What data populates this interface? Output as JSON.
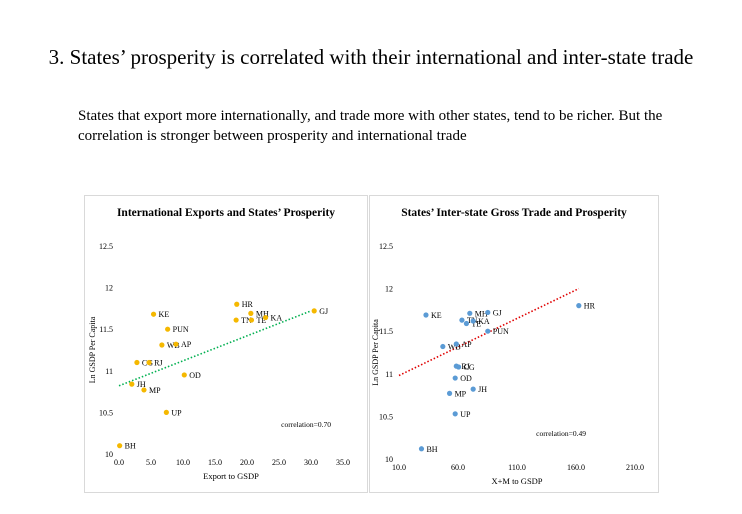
{
  "title": "3. States’ prosperity is correlated with their international and inter-state trade",
  "subtitle": "States that export more internationally, and trade more with other states, tend to be richer. But the correlation is stronger between prosperity and international trade",
  "colors": {
    "points_left": "#f5b800",
    "points_right": "#5b9bd5",
    "trend_left": "#00b050",
    "trend_right": "#e00000"
  },
  "chart_data": [
    {
      "type": "scatter",
      "title": "International Exports and States’ Prosperity",
      "xlabel": "Export to GSDP",
      "ylabel": "Ln GSDP Per Capita",
      "xlim": [
        0,
        35
      ],
      "ylim": [
        10,
        12.5
      ],
      "xticks": [
        "0.0",
        "5.0",
        "10.0",
        "15.0",
        "20.0",
        "25.0",
        "30.0",
        "35.0"
      ],
      "yticks": [
        "10",
        "10.5",
        "11",
        "11.5",
        "12",
        "12.5"
      ],
      "annotation": "correlation=0.70",
      "trendline": {
        "style": "dotted",
        "from": [
          0,
          10.82
        ],
        "to": [
          30,
          11.72
        ]
      },
      "points": [
        {
          "label": "BH",
          "x": 0.1,
          "y": 10.1
        },
        {
          "label": "JH",
          "x": 2.0,
          "y": 10.84
        },
        {
          "label": "MP",
          "x": 3.9,
          "y": 10.77
        },
        {
          "label": "UP",
          "x": 7.4,
          "y": 10.5
        },
        {
          "label": "CG",
          "x": 2.8,
          "y": 11.1
        },
        {
          "label": "RJ",
          "x": 4.7,
          "y": 11.1
        },
        {
          "label": "OD",
          "x": 10.2,
          "y": 10.95
        },
        {
          "label": "WB",
          "x": 6.7,
          "y": 11.31
        },
        {
          "label": "AP",
          "x": 8.9,
          "y": 11.32
        },
        {
          "label": "PUN",
          "x": 7.6,
          "y": 11.5
        },
        {
          "label": "KE",
          "x": 5.4,
          "y": 11.68
        },
        {
          "label": "HR",
          "x": 18.4,
          "y": 11.8
        },
        {
          "label": "TN",
          "x": 18.3,
          "y": 11.61
        },
        {
          "label": "MH",
          "x": 20.6,
          "y": 11.69
        },
        {
          "label": "TE",
          "x": 20.7,
          "y": 11.61
        },
        {
          "label": "KA",
          "x": 22.9,
          "y": 11.64
        },
        {
          "label": "GJ",
          "x": 30.5,
          "y": 11.72
        }
      ]
    },
    {
      "type": "scatter",
      "title": "States’ Inter-state Gross Trade and Prosperity",
      "xlabel": "X+M to GSDP",
      "ylabel": "Ln GSDP Per Capita",
      "xlim": [
        0,
        210
      ],
      "ylim": [
        10,
        12.5
      ],
      "xticks": [
        "10.0",
        "60.0",
        "110.0",
        "160.0",
        "210.0"
      ],
      "yticks": [
        "10",
        "10.5",
        "11",
        "11.5",
        "12",
        "12.5"
      ],
      "annotation": "correlation=0.49",
      "trendline": {
        "style": "dotted",
        "from": [
          0,
          10.98
        ],
        "to": [
          160,
          12.0
        ]
      },
      "points": [
        {
          "label": "BH",
          "x": 20,
          "y": 10.12
        },
        {
          "label": "UP",
          "x": 50,
          "y": 10.53
        },
        {
          "label": "MP",
          "x": 45,
          "y": 10.77
        },
        {
          "label": "JH",
          "x": 66,
          "y": 10.82
        },
        {
          "label": "OD",
          "x": 50,
          "y": 10.95
        },
        {
          "label": "CG",
          "x": 53,
          "y": 11.08
        },
        {
          "label": "RJ",
          "x": 51,
          "y": 11.09
        },
        {
          "label": "WB",
          "x": 39,
          "y": 11.32
        },
        {
          "label": "AP",
          "x": 51,
          "y": 11.35
        },
        {
          "label": "KE",
          "x": 24,
          "y": 11.69
        },
        {
          "label": "TN",
          "x": 56,
          "y": 11.63
        },
        {
          "label": "TE",
          "x": 60,
          "y": 11.59
        },
        {
          "label": "KA",
          "x": 66,
          "y": 11.62
        },
        {
          "label": "MH",
          "x": 63,
          "y": 11.71
        },
        {
          "label": "GJ",
          "x": 79,
          "y": 11.72
        },
        {
          "label": "PUN",
          "x": 79,
          "y": 11.5
        },
        {
          "label": "HR",
          "x": 160,
          "y": 11.8
        }
      ]
    }
  ]
}
